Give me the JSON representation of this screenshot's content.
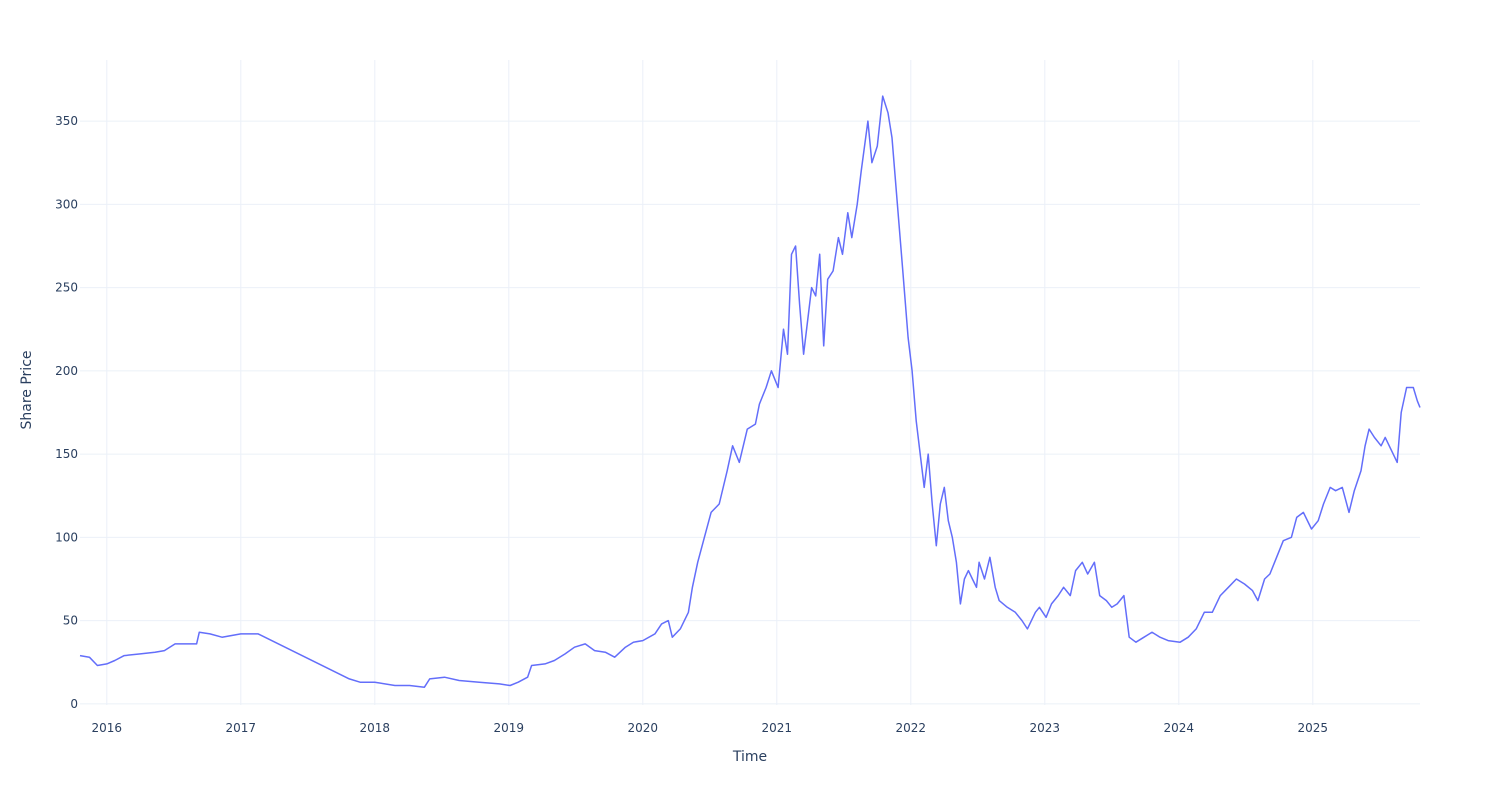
{
  "chart_data": {
    "type": "line",
    "x_label": "Time",
    "y_label": "Share Price",
    "x": [
      2015.8,
      2015.87,
      2015.93,
      2016.0,
      2016.06,
      2016.13,
      2016.25,
      2016.36,
      2016.43,
      2016.51,
      2016.62,
      2016.67,
      2016.69,
      2016.77,
      2016.86,
      2017.0,
      2017.13,
      2017.81,
      2017.89,
      2018.0,
      2018.15,
      2018.26,
      2018.37,
      2018.41,
      2018.52,
      2018.63,
      2018.78,
      2018.93,
      2019.01,
      2019.07,
      2019.14,
      2019.17,
      2019.27,
      2019.34,
      2019.42,
      2019.49,
      2019.57,
      2019.64,
      2019.72,
      2019.79,
      2019.87,
      2019.93,
      2020.0,
      2020.09,
      2020.14,
      2020.19,
      2020.22,
      2020.28,
      2020.34,
      2020.37,
      2020.41,
      2020.46,
      2020.51,
      2020.57,
      2020.63,
      2020.67,
      2020.72,
      2020.78,
      2020.84,
      2020.87,
      2020.92,
      2020.96,
      2021.01,
      2021.05,
      2021.08,
      2021.11,
      2021.14,
      2021.17,
      2021.2,
      2021.23,
      2021.26,
      2021.29,
      2021.32,
      2021.35,
      2021.38,
      2021.42,
      2021.46,
      2021.49,
      2021.53,
      2021.56,
      2021.6,
      2021.63,
      2021.68,
      2021.71,
      2021.75,
      2021.79,
      2021.83,
      2021.86,
      2021.9,
      2021.94,
      2021.98,
      2022.01,
      2022.04,
      2022.07,
      2022.1,
      2022.13,
      2022.16,
      2022.19,
      2022.22,
      2022.25,
      2022.28,
      2022.31,
      2022.34,
      2022.37,
      2022.4,
      2022.43,
      2022.46,
      2022.49,
      2022.51,
      2022.55,
      2022.59,
      2022.63,
      2022.66,
      2022.72,
      2022.78,
      2022.83,
      2022.87,
      2022.93,
      2022.96,
      2023.01,
      2023.05,
      2023.1,
      2023.14,
      2023.19,
      2023.23,
      2023.28,
      2023.32,
      2023.37,
      2023.41,
      2023.46,
      2023.5,
      2023.54,
      2023.59,
      2023.63,
      2023.68,
      2023.74,
      2023.8,
      2023.86,
      2023.92,
      2024.01,
      2024.07,
      2024.13,
      2024.19,
      2024.25,
      2024.31,
      2024.37,
      2024.43,
      2024.49,
      2024.55,
      2024.59,
      2024.64,
      2024.68,
      2024.73,
      2024.78,
      2024.84,
      2024.88,
      2024.93,
      2024.99,
      2025.04,
      2025.08,
      2025.13,
      2025.17,
      2025.22,
      2025.27,
      2025.31,
      2025.36,
      2025.39,
      2025.42,
      2025.46,
      2025.51,
      2025.54,
      2025.6,
      2025.63,
      2025.66,
      2025.7,
      2025.75,
      2025.78,
      2025.8
    ],
    "series": [
      {
        "color": "#636efa",
        "values": [
          29,
          28,
          23,
          24,
          26,
          29,
          30,
          31,
          32,
          36,
          36,
          36,
          43,
          42,
          40,
          42,
          42,
          15,
          13,
          13,
          11,
          11,
          10,
          15,
          16,
          14,
          13,
          12,
          11,
          13,
          16,
          23,
          24,
          26,
          30,
          34,
          36,
          32,
          31,
          28,
          34,
          37,
          38,
          42,
          48,
          50,
          40,
          45,
          55,
          70,
          85,
          100,
          115,
          120,
          140,
          155,
          145,
          165,
          168,
          180,
          190,
          200,
          190,
          225,
          210,
          270,
          275,
          240,
          210,
          230,
          250,
          245,
          270,
          215,
          255,
          260,
          280,
          270,
          295,
          280,
          300,
          320,
          350,
          325,
          335,
          365,
          355,
          340,
          300,
          260,
          220,
          200,
          170,
          150,
          130,
          150,
          120,
          95,
          120,
          130,
          110,
          100,
          85,
          60,
          75,
          80,
          75,
          70,
          85,
          75,
          88,
          70,
          62,
          58,
          55,
          50,
          45,
          55,
          58,
          52,
          60,
          65,
          70,
          65,
          80,
          85,
          78,
          85,
          65,
          62,
          58,
          60,
          65,
          40,
          37,
          40,
          43,
          40,
          38,
          37,
          40,
          45,
          55,
          55,
          65,
          70,
          75,
          72,
          68,
          62,
          75,
          78,
          88,
          98,
          100,
          112,
          115,
          105,
          110,
          120,
          130,
          128,
          130,
          115,
          128,
          140,
          155,
          165,
          160,
          155,
          160,
          150,
          145,
          175,
          190,
          190,
          182,
          178
        ]
      }
    ],
    "xlim": [
      2015.8,
      2025.8
    ],
    "ylim": [
      -0.7,
      386.7
    ],
    "xticks": [
      2016,
      2017,
      2018,
      2019,
      2020,
      2021,
      2022,
      2023,
      2024,
      2025
    ],
    "yticks": [
      0,
      50,
      100,
      150,
      200,
      250,
      300,
      350
    ],
    "grid": true
  }
}
